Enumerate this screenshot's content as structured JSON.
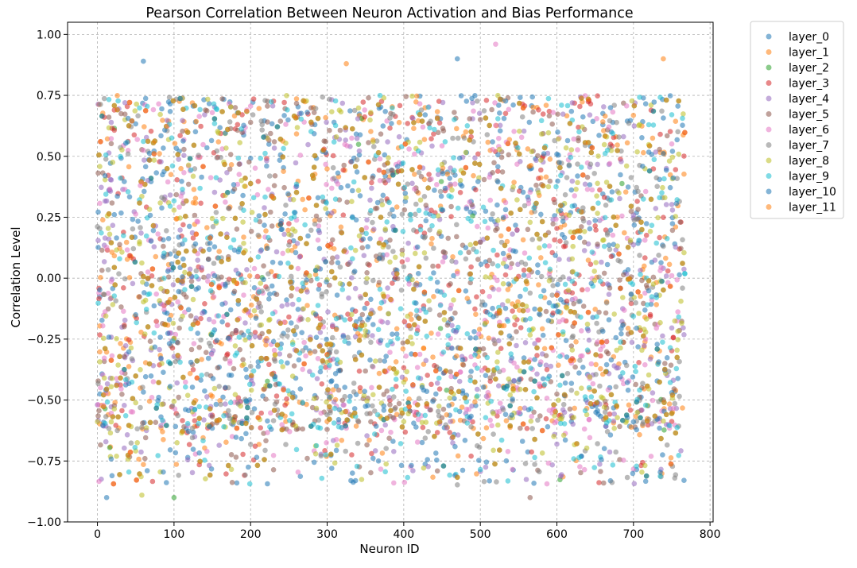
{
  "chart_data": {
    "type": "scatter",
    "title": "Pearson Correlation Between Neuron Activation and Bias Performance",
    "xlabel": "Neuron ID",
    "ylabel": "Correlation Level",
    "xlim": [
      -39,
      804
    ],
    "ylim": [
      -1.0,
      1.05
    ],
    "xticks": [
      0,
      100,
      200,
      300,
      400,
      500,
      600,
      700,
      800
    ],
    "xtick_labels": [
      "0",
      "100",
      "200",
      "300",
      "400",
      "500",
      "600",
      "700",
      "800"
    ],
    "yticks": [
      -1.0,
      -0.75,
      -0.5,
      -0.25,
      0.0,
      0.25,
      0.5,
      0.75,
      1.0
    ],
    "ytick_labels": [
      "−1.00",
      "−0.75",
      "−0.50",
      "−0.25",
      "0.00",
      "0.25",
      "0.50",
      "0.75",
      "1.00"
    ],
    "grid": true,
    "legend_position": "outside-right",
    "marker_alpha": 0.55,
    "x_range_of_points": [
      0,
      767
    ],
    "y_range_of_points": [
      -0.9,
      0.96
    ],
    "series": [
      {
        "name": "layer_0",
        "color": "#1f77b4"
      },
      {
        "name": "layer_1",
        "color": "#ff7f0e"
      },
      {
        "name": "layer_2",
        "color": "#2ca02c"
      },
      {
        "name": "layer_3",
        "color": "#d62728"
      },
      {
        "name": "layer_4",
        "color": "#9467bd"
      },
      {
        "name": "layer_5",
        "color": "#8c564b"
      },
      {
        "name": "layer_6",
        "color": "#e377c2"
      },
      {
        "name": "layer_7",
        "color": "#7f7f7f"
      },
      {
        "name": "layer_8",
        "color": "#bcbd22"
      },
      {
        "name": "layer_9",
        "color": "#17becf"
      },
      {
        "name": "layer_10",
        "color": "#1f77b4"
      },
      {
        "name": "layer_11",
        "color": "#ff7f0e"
      }
    ],
    "annotated_outliers": [
      {
        "series": "layer_6",
        "x": 520,
        "y": 0.96
      },
      {
        "series": "layer_0",
        "x": 470,
        "y": 0.9
      },
      {
        "series": "layer_1",
        "x": 739,
        "y": 0.9
      },
      {
        "series": "layer_0",
        "x": 60,
        "y": 0.89
      },
      {
        "series": "layer_1",
        "x": 325,
        "y": 0.88
      },
      {
        "series": "layer_0",
        "x": 12,
        "y": -0.9
      },
      {
        "series": "layer_2",
        "x": 100,
        "y": -0.9
      },
      {
        "series": "layer_5",
        "x": 565,
        "y": -0.9
      },
      {
        "series": "layer_8",
        "x": 58,
        "y": -0.89
      }
    ]
  }
}
